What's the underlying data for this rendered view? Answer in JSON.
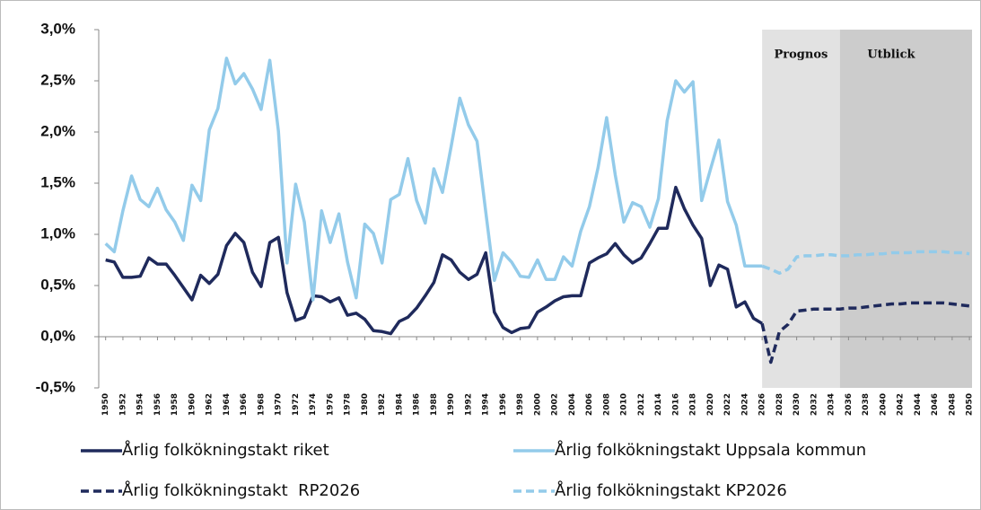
{
  "chart_data": {
    "type": "line",
    "x": [
      1950,
      1951,
      1952,
      1953,
      1954,
      1955,
      1956,
      1957,
      1958,
      1959,
      1960,
      1961,
      1962,
      1963,
      1964,
      1965,
      1966,
      1967,
      1968,
      1969,
      1970,
      1971,
      1972,
      1973,
      1974,
      1975,
      1976,
      1977,
      1978,
      1979,
      1980,
      1981,
      1982,
      1983,
      1984,
      1985,
      1986,
      1987,
      1988,
      1989,
      1990,
      1991,
      1992,
      1993,
      1994,
      1995,
      1996,
      1997,
      1998,
      1999,
      2000,
      2001,
      2002,
      2003,
      2004,
      2005,
      2006,
      2007,
      2008,
      2009,
      2010,
      2011,
      2012,
      2013,
      2014,
      2015,
      2016,
      2017,
      2018,
      2019,
      2020,
      2021,
      2022,
      2023,
      2024,
      2025,
      2026,
      2027,
      2028,
      2029,
      2030,
      2031,
      2032,
      2033,
      2034,
      2035,
      2036,
      2037,
      2038,
      2039,
      2040,
      2041,
      2042,
      2043,
      2044,
      2045,
      2046,
      2047,
      2048,
      2049,
      2050
    ],
    "series": [
      {
        "name": "Årlig folkökningstakt riket",
        "color": "#1f2a5c",
        "dash": false,
        "values": [
          0.75,
          0.73,
          0.58,
          0.58,
          0.59,
          0.77,
          0.71,
          0.71,
          0.6,
          0.48,
          0.36,
          0.6,
          0.52,
          0.61,
          0.89,
          1.01,
          0.92,
          0.63,
          0.49,
          0.92,
          0.97,
          0.43,
          0.16,
          0.19,
          0.4,
          0.39,
          0.34,
          0.38,
          0.21,
          0.23,
          0.17,
          0.06,
          0.05,
          0.03,
          0.15,
          0.19,
          0.28,
          0.4,
          0.53,
          0.8,
          0.75,
          0.63,
          0.56,
          0.61,
          0.82,
          0.24,
          0.09,
          0.04,
          0.08,
          0.09,
          0.24,
          0.29,
          0.35,
          0.39,
          0.4,
          0.4,
          0.72,
          0.77,
          0.81,
          0.91,
          0.8,
          0.72,
          0.77,
          0.91,
          1.06,
          1.06,
          1.46,
          1.25,
          1.09,
          0.96,
          0.5,
          0.7,
          0.66,
          0.29,
          0.34,
          0.18,
          0.13,
          null,
          null,
          null,
          null,
          null,
          null,
          null,
          null,
          null,
          null,
          null,
          null,
          null,
          null,
          null,
          null,
          null,
          null,
          null,
          null,
          null,
          null,
          null,
          null
        ]
      },
      {
        "name": "Årlig folkökningstakt Uppsala kommun",
        "color": "#93cbea",
        "dash": false,
        "values": [
          0.91,
          0.83,
          1.23,
          1.57,
          1.34,
          1.27,
          1.45,
          1.24,
          1.12,
          0.94,
          1.48,
          1.33,
          2.02,
          2.23,
          2.72,
          2.47,
          2.57,
          2.42,
          2.22,
          2.7,
          2.01,
          0.72,
          1.49,
          1.12,
          0.36,
          1.23,
          0.92,
          1.2,
          0.73,
          0.38,
          1.1,
          1.01,
          0.72,
          1.34,
          1.39,
          1.74,
          1.33,
          1.11,
          1.64,
          1.41,
          1.86,
          2.33,
          2.07,
          1.91,
          1.22,
          0.55,
          0.82,
          0.73,
          0.59,
          0.58,
          0.75,
          0.56,
          0.56,
          0.78,
          0.69,
          1.03,
          1.27,
          1.65,
          2.14,
          1.58,
          1.12,
          1.31,
          1.27,
          1.07,
          1.35,
          2.11,
          2.5,
          2.39,
          2.49,
          1.33,
          1.63,
          1.92,
          1.32,
          1.09,
          0.69,
          0.69,
          0.69,
          null,
          null,
          null,
          null,
          null,
          null,
          null,
          null,
          null,
          null,
          null,
          null,
          null,
          null,
          null,
          null,
          null,
          null,
          null,
          null,
          null,
          null,
          null,
          null
        ]
      },
      {
        "name": "Årlig folkökningstakt  RP2026",
        "color": "#1f2a5c",
        "dash": true,
        "values": [
          null,
          null,
          null,
          null,
          null,
          null,
          null,
          null,
          null,
          null,
          null,
          null,
          null,
          null,
          null,
          null,
          null,
          null,
          null,
          null,
          null,
          null,
          null,
          null,
          null,
          null,
          null,
          null,
          null,
          null,
          null,
          null,
          null,
          null,
          null,
          null,
          null,
          null,
          null,
          null,
          null,
          null,
          null,
          null,
          null,
          null,
          null,
          null,
          null,
          null,
          null,
          null,
          null,
          null,
          null,
          null,
          null,
          null,
          null,
          null,
          null,
          null,
          null,
          null,
          null,
          null,
          null,
          null,
          null,
          null,
          null,
          null,
          null,
          null,
          null,
          null,
          0.13,
          -0.25,
          0.05,
          0.12,
          0.25,
          0.26,
          0.27,
          0.27,
          0.27,
          0.27,
          0.28,
          0.28,
          0.29,
          0.3,
          0.31,
          0.32,
          0.32,
          0.33,
          0.33,
          0.33,
          0.33,
          0.33,
          0.32,
          0.31,
          0.3
        ]
      },
      {
        "name": "Årlig folkökningstakt KP2026",
        "color": "#93cbea",
        "dash": true,
        "values": [
          null,
          null,
          null,
          null,
          null,
          null,
          null,
          null,
          null,
          null,
          null,
          null,
          null,
          null,
          null,
          null,
          null,
          null,
          null,
          null,
          null,
          null,
          null,
          null,
          null,
          null,
          null,
          null,
          null,
          null,
          null,
          null,
          null,
          null,
          null,
          null,
          null,
          null,
          null,
          null,
          null,
          null,
          null,
          null,
          null,
          null,
          null,
          null,
          null,
          null,
          null,
          null,
          null,
          null,
          null,
          null,
          null,
          null,
          null,
          null,
          null,
          null,
          null,
          null,
          null,
          null,
          null,
          null,
          null,
          null,
          null,
          null,
          null,
          null,
          null,
          null,
          0.69,
          0.66,
          0.62,
          0.66,
          0.78,
          0.79,
          0.79,
          0.8,
          0.8,
          0.79,
          0.79,
          0.8,
          0.8,
          0.81,
          0.81,
          0.82,
          0.82,
          0.82,
          0.83,
          0.83,
          0.83,
          0.83,
          0.82,
          0.82,
          0.81
        ]
      }
    ],
    "bands": [
      {
        "label": "Prognos",
        "from": 2026,
        "to": 2035,
        "color": "#e2e2e2"
      },
      {
        "label": "Utblick",
        "from": 2035,
        "to": 2050,
        "color": "#cccccc"
      }
    ],
    "xlim": [
      1949.2,
      2050.3
    ],
    "xticks": [
      1950,
      1952,
      1954,
      1956,
      1958,
      1960,
      1962,
      1964,
      1966,
      1968,
      1970,
      1972,
      1974,
      1976,
      1978,
      1980,
      1982,
      1984,
      1986,
      1988,
      1990,
      1992,
      1994,
      1996,
      1998,
      2000,
      2002,
      2004,
      2006,
      2008,
      2010,
      2012,
      2014,
      2016,
      2018,
      2020,
      2022,
      2024,
      2026,
      2028,
      2030,
      2032,
      2034,
      2036,
      2038,
      2040,
      2042,
      2044,
      2046,
      2048,
      2050
    ],
    "ylim": [
      -0.5,
      3
    ],
    "yticks": [
      {
        "value": -0.5,
        "label": "-0,5%"
      },
      {
        "value": 0,
        "label": "0,0%"
      },
      {
        "value": 0.5,
        "label": "0,5%"
      },
      {
        "value": 1,
        "label": "1,0%"
      },
      {
        "value": 1.5,
        "label": "1,5%"
      },
      {
        "value": 2,
        "label": "2,0%"
      },
      {
        "value": 2.5,
        "label": "2,5%"
      },
      {
        "value": 3,
        "label": "3,0%"
      }
    ]
  }
}
